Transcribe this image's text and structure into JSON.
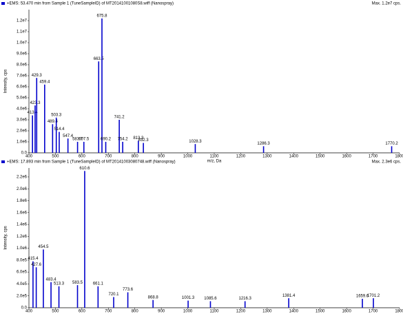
{
  "chart_data": [
    {
      "type": "spectrum",
      "header": "+EMS: 53.470 min from Sample 1 (TuneSampleID) of MT20141001080S8.wiff (Nanospray)",
      "max_label": "Max. 1.2e7 cps.",
      "y_label": "Intensity, cps",
      "x_label": "m/z, Da",
      "color": "#0000cc",
      "x": [
        413.4,
        423.3,
        429.3,
        459.4,
        489.4,
        503.3,
        514.4,
        547.4,
        583.7,
        607.5,
        663.5,
        675.8,
        690.2,
        741.2,
        754.2,
        813.3,
        832.3,
        1028.3,
        1286.3,
        1770.2
      ],
      "values": [
        3400000,
        4300000,
        6800000,
        6200000,
        2600000,
        3200000,
        1900000,
        1300000,
        1000000,
        1000000,
        8300000,
        12200000,
        1000000,
        3000000,
        1000000,
        1100000,
        900000,
        800000,
        600000,
        600000
      ],
      "xlim": [
        400,
        1800
      ],
      "xticks": [
        400,
        500,
        600,
        700,
        800,
        900,
        1000,
        1100,
        1200,
        1300,
        1400,
        1500,
        1600,
        1700,
        1800
      ],
      "ylim": [
        0,
        13000000
      ],
      "yticks": [
        {
          "value": 0,
          "label": "0.0"
        },
        {
          "value": 1000000,
          "label": "1.0e6"
        },
        {
          "value": 2000000,
          "label": "2.0e6"
        },
        {
          "value": 3000000,
          "label": "3.0e6"
        },
        {
          "value": 4000000,
          "label": "4.0e6"
        },
        {
          "value": 5000000,
          "label": "5.0e6"
        },
        {
          "value": 6000000,
          "label": "6.0e6"
        },
        {
          "value": 7000000,
          "label": "7.0e6"
        },
        {
          "value": 8000000,
          "label": "8.0e6"
        },
        {
          "value": 9000000,
          "label": "9.0e6"
        },
        {
          "value": 10000000,
          "label": "1.0e7"
        },
        {
          "value": 11000000,
          "label": "1.1e7"
        },
        {
          "value": 12000000,
          "label": "1.2e7"
        }
      ]
    },
    {
      "type": "spectrum",
      "header": "+EMS: 17.893 min from Sample 1 (TuneSampleID) of MT20141003080748.wiff (Nanospray)",
      "max_label": "Max. 2.3e6 cps.",
      "y_label": "Intensity, cps",
      "x_label": "m/z, Da",
      "color": "#0000cc",
      "x": [
        415.4,
        427.6,
        454.5,
        483.4,
        513.3,
        583.5,
        610.6,
        661.1,
        720.1,
        773.6,
        868.8,
        1001.3,
        1085.6,
        1216.3,
        1381.4,
        1659.6,
        1701.2
      ],
      "values": [
        780000,
        680000,
        980000,
        430000,
        360000,
        380000,
        2300000,
        360000,
        180000,
        260000,
        130000,
        120000,
        110000,
        110000,
        160000,
        150000,
        160000
      ],
      "xlim": [
        400,
        1800
      ],
      "xticks": [
        400,
        500,
        600,
        700,
        800,
        900,
        1000,
        1100,
        1200,
        1300,
        1400,
        1500,
        1600,
        1700,
        1800
      ],
      "ylim": [
        0,
        2350000
      ],
      "yticks": [
        {
          "value": 0,
          "label": "0.0"
        },
        {
          "value": 200000,
          "label": "2.0e5"
        },
        {
          "value": 400000,
          "label": "4.0e5"
        },
        {
          "value": 600000,
          "label": "6.0e5"
        },
        {
          "value": 800000,
          "label": "8.0e5"
        },
        {
          "value": 1000000,
          "label": "1.0e6"
        },
        {
          "value": 1200000,
          "label": "1.2e6"
        },
        {
          "value": 1400000,
          "label": "1.4e6"
        },
        {
          "value": 1600000,
          "label": "1.6e6"
        },
        {
          "value": 1800000,
          "label": "1.8e6"
        },
        {
          "value": 2000000,
          "label": "2.0e6"
        },
        {
          "value": 2200000,
          "label": "2.2e6"
        }
      ]
    }
  ]
}
